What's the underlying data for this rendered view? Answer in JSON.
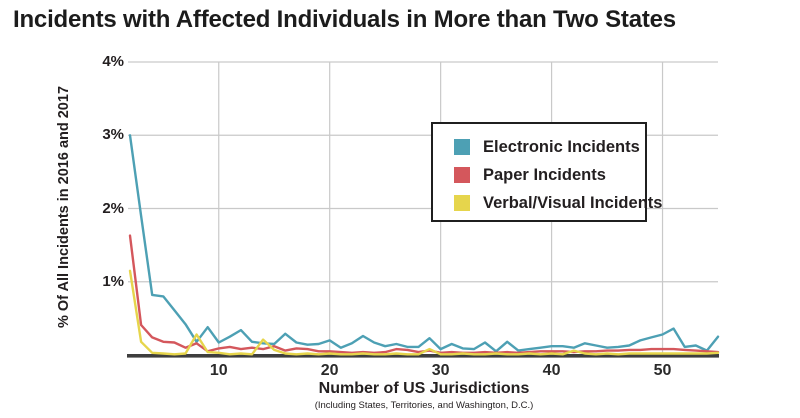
{
  "title": "Incidents with Affected Individuals in More than Two States",
  "colors": {
    "grid": "#c9c9c9",
    "axis": "#3e3e3e",
    "text": "#231f20",
    "background": "#ffffff",
    "electronic": "#4da0b4",
    "paper": "#d4575c",
    "verbal_visual": "#e6d54c"
  },
  "chart_data": {
    "type": "line",
    "title": "Incidents with Affected Individuals in More than Two States",
    "xlabel": "Number of US Jurisdictions",
    "xlabel_note": "(Including States, Territories, and Washington, D.C.)",
    "ylabel": "% Of All Incidents in 2016 and 2017",
    "xlim": [
      2,
      55
    ],
    "ylim": [
      0,
      4
    ],
    "grid": true,
    "legend_position": "upper-right-inside",
    "x_ticks": [
      10,
      20,
      30,
      40,
      50
    ],
    "y_ticks": [
      {
        "value": 1,
        "label": "1%"
      },
      {
        "value": 2,
        "label": "2%"
      },
      {
        "value": 3,
        "label": "3%"
      },
      {
        "value": 4,
        "label": "4%"
      }
    ],
    "x": [
      2,
      3,
      4,
      5,
      6,
      7,
      8,
      9,
      10,
      11,
      12,
      13,
      14,
      15,
      16,
      17,
      18,
      19,
      20,
      21,
      22,
      23,
      24,
      25,
      26,
      27,
      28,
      29,
      30,
      31,
      32,
      33,
      34,
      35,
      36,
      37,
      38,
      39,
      40,
      41,
      42,
      43,
      44,
      45,
      46,
      47,
      48,
      49,
      50,
      51,
      52,
      53,
      54,
      55
    ],
    "series": [
      {
        "name": "Electronic Incidents",
        "color": "#4da0b4",
        "values": [
          3.0,
          1.9,
          0.82,
          0.8,
          0.61,
          0.42,
          0.18,
          0.38,
          0.17,
          0.25,
          0.34,
          0.18,
          0.16,
          0.15,
          0.29,
          0.17,
          0.14,
          0.15,
          0.2,
          0.1,
          0.16,
          0.26,
          0.17,
          0.12,
          0.15,
          0.11,
          0.11,
          0.23,
          0.08,
          0.15,
          0.09,
          0.08,
          0.17,
          0.05,
          0.18,
          0.06,
          0.08,
          0.1,
          0.12,
          0.12,
          0.1,
          0.16,
          0.13,
          0.1,
          0.11,
          0.13,
          0.2,
          0.24,
          0.28,
          0.36,
          0.11,
          0.13,
          0.06,
          0.25
        ]
      },
      {
        "name": "Paper Incidents",
        "color": "#d4575c",
        "values": [
          1.63,
          0.41,
          0.24,
          0.18,
          0.17,
          0.1,
          0.16,
          0.05,
          0.09,
          0.11,
          0.08,
          0.1,
          0.08,
          0.12,
          0.06,
          0.09,
          0.08,
          0.05,
          0.05,
          0.04,
          0.03,
          0.04,
          0.03,
          0.04,
          0.08,
          0.07,
          0.04,
          0.06,
          0.03,
          0.04,
          0.03,
          0.03,
          0.04,
          0.03,
          0.04,
          0.03,
          0.04,
          0.05,
          0.05,
          0.05,
          0.04,
          0.05,
          0.05,
          0.06,
          0.06,
          0.07,
          0.07,
          0.08,
          0.08,
          0.08,
          0.07,
          0.06,
          0.05,
          0.04
        ]
      },
      {
        "name": "Verbal/Visual Incidents",
        "color": "#e6d54c",
        "values": [
          1.15,
          0.18,
          0.03,
          0.02,
          0.01,
          0.02,
          0.28,
          0.04,
          0.03,
          0.01,
          0.02,
          0.01,
          0.21,
          0.07,
          0.02,
          0.01,
          0.02,
          0.01,
          0.02,
          0.01,
          0.01,
          0.02,
          0.01,
          0.01,
          0.02,
          0.01,
          0.01,
          0.08,
          0.01,
          0.01,
          0.02,
          0.01,
          0.01,
          0.02,
          0.01,
          0.01,
          0.02,
          0.01,
          0.02,
          0.01,
          0.06,
          0.02,
          0.01,
          0.02,
          0.01,
          0.02,
          0.02,
          0.02,
          0.02,
          0.02,
          0.02,
          0.02,
          0.02,
          0.03
        ]
      }
    ]
  }
}
